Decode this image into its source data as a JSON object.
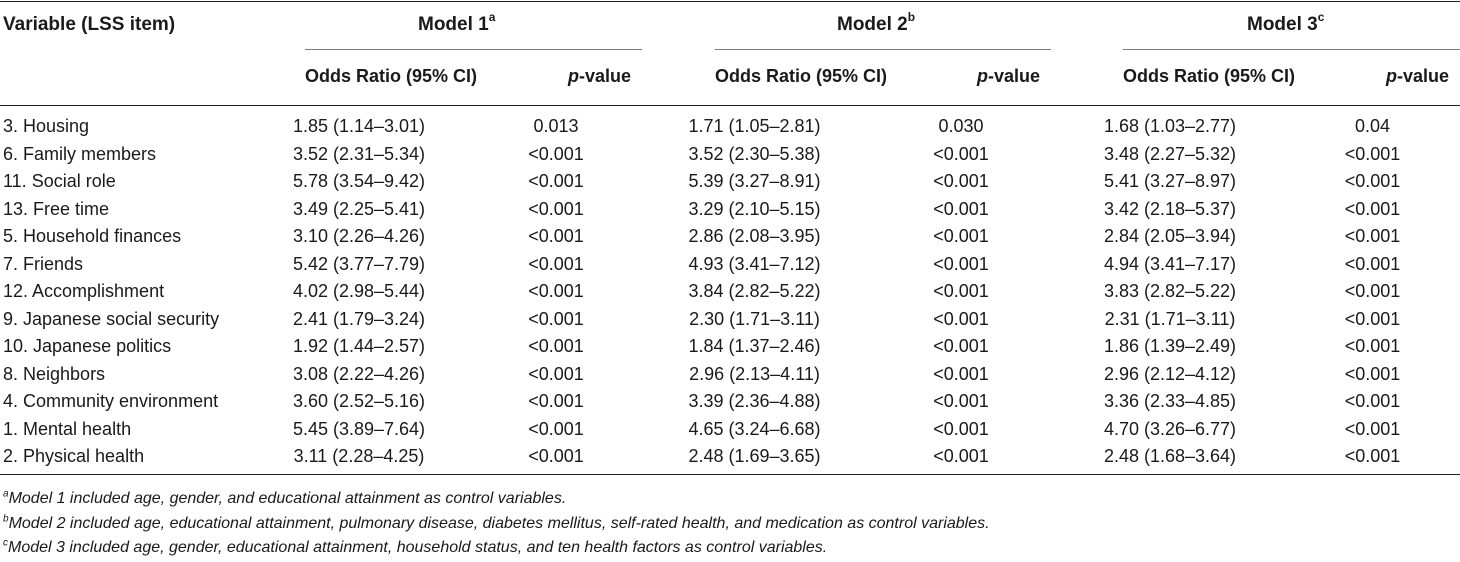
{
  "table": {
    "stub_header": "Variable (LSS item)",
    "models": [
      {
        "label": "Model 1",
        "sup": "a"
      },
      {
        "label": "Model 2",
        "sup": "b"
      },
      {
        "label": "Model 3",
        "sup": "c"
      }
    ],
    "subheaders": {
      "odds_ratio": "Odds Ratio (95% CI)",
      "p_italic": "p",
      "p_rest": "-value"
    },
    "rows": [
      {
        "variable": "3. Housing",
        "m1_or": "1.85 (1.14–3.01)",
        "m1_p": "0.013",
        "m2_or": "1.71 (1.05–2.81)",
        "m2_p": "0.030",
        "m3_or": "1.68 (1.03–2.77)",
        "m3_p": "0.04"
      },
      {
        "variable": "6. Family members",
        "m1_or": "3.52 (2.31–5.34)",
        "m1_p": "<0.001",
        "m2_or": "3.52 (2.30–5.38)",
        "m2_p": "<0.001",
        "m3_or": "3.48 (2.27–5.32)",
        "m3_p": "<0.001"
      },
      {
        "variable": "11. Social role",
        "m1_or": "5.78 (3.54–9.42)",
        "m1_p": "<0.001",
        "m2_or": "5.39 (3.27–8.91)",
        "m2_p": "<0.001",
        "m3_or": "5.41 (3.27–8.97)",
        "m3_p": "<0.001"
      },
      {
        "variable": "13. Free time",
        "m1_or": "3.49 (2.25–5.41)",
        "m1_p": "<0.001",
        "m2_or": "3.29 (2.10–5.15)",
        "m2_p": "<0.001",
        "m3_or": "3.42 (2.18–5.37)",
        "m3_p": "<0.001"
      },
      {
        "variable": "5. Household finances",
        "m1_or": "3.10 (2.26–4.26)",
        "m1_p": "<0.001",
        "m2_or": "2.86 (2.08–3.95)",
        "m2_p": "<0.001",
        "m3_or": "2.84 (2.05–3.94)",
        "m3_p": "<0.001"
      },
      {
        "variable": "7. Friends",
        "m1_or": "5.42 (3.77–7.79)",
        "m1_p": "<0.001",
        "m2_or": "4.93 (3.41–7.12)",
        "m2_p": "<0.001",
        "m3_or": "4.94 (3.41–7.17)",
        "m3_p": "<0.001"
      },
      {
        "variable": "12. Accomplishment",
        "m1_or": "4.02 (2.98–5.44)",
        "m1_p": "<0.001",
        "m2_or": "3.84 (2.82–5.22)",
        "m2_p": "<0.001",
        "m3_or": "3.83 (2.82–5.22)",
        "m3_p": "<0.001"
      },
      {
        "variable": "9. Japanese social security",
        "m1_or": "2.41 (1.79–3.24)",
        "m1_p": "<0.001",
        "m2_or": "2.30 (1.71–3.11)",
        "m2_p": "<0.001",
        "m3_or": "2.31 (1.71–3.11)",
        "m3_p": "<0.001"
      },
      {
        "variable": "10. Japanese politics",
        "m1_or": "1.92 (1.44–2.57)",
        "m1_p": "<0.001",
        "m2_or": "1.84 (1.37–2.46)",
        "m2_p": "<0.001",
        "m3_or": "1.86 (1.39–2.49)",
        "m3_p": "<0.001"
      },
      {
        "variable": "8. Neighbors",
        "m1_or": "3.08 (2.22–4.26)",
        "m1_p": "<0.001",
        "m2_or": "2.96 (2.13–4.11)",
        "m2_p": "<0.001",
        "m3_or": "2.96 (2.12–4.12)",
        "m3_p": "<0.001"
      },
      {
        "variable": "4. Community environment",
        "m1_or": "3.60 (2.52–5.16)",
        "m1_p": "<0.001",
        "m2_or": "3.39 (2.36–4.88)",
        "m2_p": "<0.001",
        "m3_or": "3.36 (2.33–4.85)",
        "m3_p": "<0.001"
      },
      {
        "variable": "1. Mental health",
        "m1_or": "5.45 (3.89–7.64)",
        "m1_p": "<0.001",
        "m2_or": "4.65 (3.24–6.68)",
        "m2_p": "<0.001",
        "m3_or": "4.70 (3.26–6.77)",
        "m3_p": "<0.001"
      },
      {
        "variable": "2. Physical health",
        "m1_or": "3.11 (2.28–4.25)",
        "m1_p": "<0.001",
        "m2_or": "2.48 (1.69–3.65)",
        "m2_p": "<0.001",
        "m3_or": "2.48 (1.68–3.64)",
        "m3_p": "<0.001"
      }
    ]
  },
  "footnotes": [
    {
      "sup": "a",
      "text": "Model 1 included age, gender, and educational attainment as control variables."
    },
    {
      "sup": "b",
      "text": "Model 2 included age, educational attainment, pulmonary disease, diabetes mellitus, self-rated health, and medication as control variables."
    },
    {
      "sup": "c",
      "text": "Model 3 included age, gender, educational attainment, household status, and ten health factors as control variables."
    }
  ]
}
